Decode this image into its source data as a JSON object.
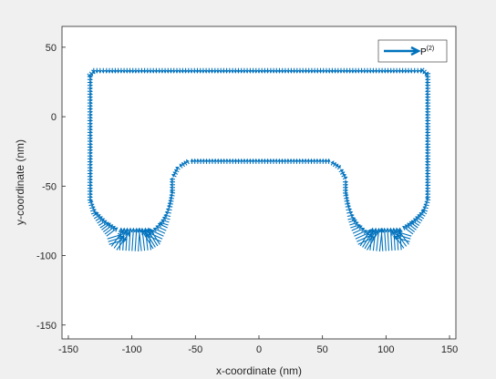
{
  "chart_data": {
    "type": "quiver",
    "title": "",
    "xlabel": "x-coordinate (nm)",
    "ylabel": "y-coordinate (nm)",
    "xlim": [
      -155,
      155
    ],
    "ylim": [
      -160,
      65
    ],
    "xticks": [
      -150,
      -100,
      -50,
      0,
      50,
      100,
      150
    ],
    "yticks": [
      50,
      0,
      -50,
      -100,
      -150
    ],
    "grid": false,
    "legend_position": "top-right",
    "series": [
      {
        "name": "P^{(2)}",
        "legend_base": "P",
        "legend_sup": "(2)",
        "color": "#0072bd",
        "outline_x": [
          -135,
          -130,
          -120,
          0,
          120,
          130,
          135,
          135,
          132,
          125,
          120,
          118,
          112,
          95,
          85,
          78,
          75,
          72,
          70,
          68,
          66,
          66,
          62,
          55,
          -55,
          -62,
          -66,
          -66,
          -68,
          -70,
          -72,
          -75,
          -78,
          -85,
          -95,
          -112,
          -118,
          -120,
          -125,
          -132,
          -135,
          -135
        ],
        "outline_y": [
          31,
          35,
          35,
          35,
          35,
          35,
          31,
          -60,
          -70,
          -80,
          -86,
          -92,
          -96,
          -97,
          -96,
          -92,
          -86,
          -80,
          -74,
          -65,
          -55,
          -45,
          -38,
          -34,
          -34,
          -38,
          -45,
          -55,
          -65,
          -74,
          -80,
          -86,
          -92,
          -96,
          -97,
          -96,
          -92,
          -86,
          -80,
          -70,
          -60,
          31
        ]
      }
    ]
  },
  "colors": {
    "arrow": "#0072bd",
    "axes_bg": "#ffffff",
    "figure_bg": "#f0f0f0",
    "axis": "#262626"
  }
}
